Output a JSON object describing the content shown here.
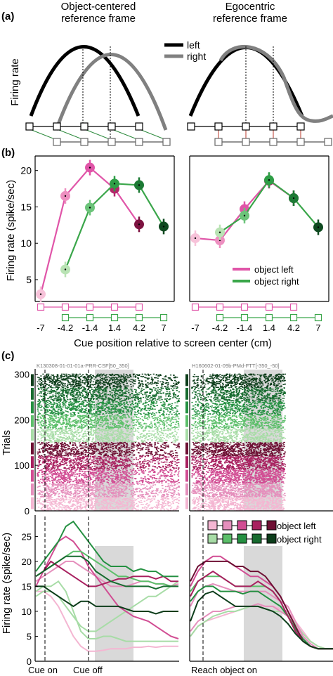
{
  "panel_a": {
    "label": "(a)",
    "title_object": [
      "Object-centered",
      "reference frame"
    ],
    "title_ego": [
      "Egocentric",
      "reference frame"
    ],
    "ylabel": "Firing rate",
    "legend": [
      {
        "label": "left",
        "color": "#000000"
      },
      {
        "label": "right",
        "color": "#808080"
      }
    ]
  },
  "panel_b": {
    "label": "(b)",
    "xlabel": "Cue position relative to screen center (cm)",
    "ylabel": "Firing rate (spike/sec)",
    "legend": [
      {
        "label": "object left",
        "color": "#e055a8"
      },
      {
        "label": "object right",
        "color": "#3aa64a"
      }
    ]
  },
  "panel_c": {
    "label": "(c)",
    "raster_titles": [
      "K130308-01-01-01a-PRR-CSF[50_350]",
      "H160602-01-09b-PMd-FTT[-350_-50]"
    ],
    "raster_ylabel": "Trials",
    "psth_ylabel": "Firing rate (spike/sec)",
    "event_labels_left": [
      "Cue on",
      "Cue off"
    ],
    "event_label_right": "Reach object on",
    "legend": [
      "object left",
      "object right"
    ],
    "colors_left": [
      "#f4b6d2",
      "#e58fbc",
      "#d14d93",
      "#a8205f",
      "#6e1034"
    ],
    "colors_right": [
      "#a7dca6",
      "#5cbf6a",
      "#249041",
      "#176b2f",
      "#0c3d1a"
    ]
  },
  "chart_data": [
    {
      "type": "line",
      "title": "",
      "xlabel": "Cue position relative to screen center (cm)",
      "ylabel": "Firing rate (spike/sec)",
      "categories": [
        "-7",
        "-4.2",
        "-1.4",
        "1.4",
        "4.2",
        "7"
      ],
      "x": [
        -7,
        -4.2,
        -1.4,
        1.4,
        4.2,
        7
      ],
      "ylim": [
        2,
        22
      ],
      "yticks": [
        5,
        10,
        15,
        20
      ],
      "series": [
        {
          "name": "object left",
          "color": "#e055a8",
          "x": [
            -7,
            -4.2,
            -1.4,
            1.4,
            4.2
          ],
          "values": [
            3.0,
            16.5,
            20.4,
            17.5,
            12.6
          ]
        },
        {
          "name": "object right",
          "color": "#3aa64a",
          "x": [
            -4.2,
            -1.4,
            1.4,
            4.2,
            7
          ],
          "values": [
            6.4,
            14.9,
            18.2,
            18.0,
            12.3
          ]
        }
      ]
    },
    {
      "type": "line",
      "title": "",
      "xlabel": "Cue position relative to screen center (cm)",
      "categories": [
        "-7",
        "-4.2",
        "-1.4",
        "1.4",
        "4.2",
        "7"
      ],
      "x": [
        -7,
        -4.2,
        -1.4,
        1.4,
        4.2,
        7
      ],
      "ylim": [
        2,
        22
      ],
      "series": [
        {
          "name": "object left",
          "color": "#e055a8",
          "x": [
            -7,
            -4.2,
            -1.4,
            1.4,
            4.2
          ],
          "values": [
            10.7,
            10.4,
            14.7,
            18.6,
            16.2
          ]
        },
        {
          "name": "object right",
          "color": "#3aa64a",
          "x": [
            -4.2,
            -1.4,
            1.4,
            4.2,
            7
          ],
          "values": [
            11.5,
            13.8,
            18.7,
            16.2,
            12.2
          ]
        }
      ]
    },
    {
      "type": "scatter",
      "ylabel": "Trials",
      "ylim": [
        0,
        310
      ],
      "yticks": [
        0,
        100,
        200,
        300
      ],
      "groups": 10
    },
    {
      "type": "scatter",
      "ylim": [
        0,
        310
      ],
      "groups": 10
    },
    {
      "type": "line",
      "ylabel": "Firing rate (spike/sec)",
      "ylim": [
        0,
        29
      ],
      "yticks": [
        0,
        5,
        10,
        15,
        20,
        25
      ],
      "x": [
        0,
        1,
        2,
        3,
        4,
        5,
        6,
        7,
        8,
        9,
        10,
        11,
        12,
        13,
        14,
        15,
        16,
        17,
        18,
        19
      ],
      "series": [
        {
          "values": [
            14,
            14,
            13,
            11,
            8,
            5,
            3,
            2,
            2,
            2.2,
            2.5,
            2.5,
            2.5,
            2.8,
            2.8,
            3,
            2.8,
            3,
            3,
            3
          ]
        },
        {
          "values": [
            13,
            14,
            14,
            13,
            11,
            9,
            7,
            6,
            6,
            7,
            8,
            9,
            10,
            11,
            12,
            13,
            13,
            14,
            15,
            16
          ]
        },
        {
          "values": [
            16,
            17,
            18,
            19,
            20,
            20,
            19,
            18,
            17,
            16,
            15,
            15,
            15,
            15.5,
            16,
            16,
            15.5,
            15.5,
            15,
            15.5
          ]
        },
        {
          "values": [
            15,
            18,
            21,
            24,
            25,
            24,
            22,
            19,
            17,
            15,
            13,
            11,
            10,
            9,
            8.5,
            8,
            7,
            6,
            5,
            4.5
          ]
        },
        {
          "values": [
            17,
            18,
            19,
            20,
            21,
            22,
            22,
            21,
            20,
            19,
            18,
            17,
            17,
            16.5,
            16,
            16,
            15.5,
            15.5,
            15,
            15
          ]
        },
        {
          "values": [
            14,
            15,
            15,
            16,
            14,
            10,
            6,
            4.5,
            4.5,
            5,
            5,
            4.5,
            4,
            4,
            4,
            4,
            4,
            4,
            4,
            4
          ]
        },
        {
          "values": [
            17,
            18,
            20,
            19,
            18,
            17,
            16,
            15,
            15,
            15.5,
            16,
            16.5,
            16.5,
            17,
            17,
            17,
            16.5,
            17,
            16,
            16
          ]
        },
        {
          "values": [
            18,
            20,
            22,
            24,
            27,
            28,
            26,
            24,
            22,
            20,
            19,
            19,
            19,
            18,
            18.5,
            18,
            18,
            17,
            17,
            17
          ]
        },
        {
          "values": [
            17,
            18,
            19,
            20,
            21,
            21,
            21,
            20,
            18,
            17,
            16,
            15.5,
            15,
            15,
            15,
            15,
            14.5,
            15,
            15,
            15
          ]
        },
        {
          "values": [
            15,
            15,
            14,
            13,
            12,
            11,
            12,
            12,
            11,
            11,
            11,
            11,
            10.5,
            10,
            10,
            10,
            9.5,
            10,
            10,
            10
          ]
        }
      ]
    },
    {
      "type": "line",
      "ylim": [
        0,
        29
      ],
      "x": [
        0,
        1,
        2,
        3,
        4,
        5,
        6,
        7,
        8,
        9,
        10,
        11,
        12,
        13,
        14,
        15,
        16,
        17,
        18,
        19
      ],
      "series": [
        {
          "values": [
            5,
            7,
            8,
            8.5,
            9,
            9.5,
            10,
            10.5,
            11,
            11,
            11,
            11,
            10.5,
            10,
            8,
            6,
            4,
            3,
            2.5,
            2.5
          ]
        },
        {
          "values": [
            5,
            7,
            8,
            9,
            9.5,
            10,
            10,
            10.5,
            11,
            11,
            10.5,
            10,
            10,
            9.5,
            7.5,
            5.5,
            4,
            3,
            2.5,
            2.5
          ]
        },
        {
          "values": [
            11,
            14,
            15,
            15.5,
            15,
            14.5,
            14,
            14,
            14,
            14,
            14,
            13,
            12,
            11,
            8,
            5,
            3.5,
            2.5,
            2.5,
            2.5
          ]
        },
        {
          "values": [
            15,
            18,
            20,
            21,
            21,
            20,
            19,
            18,
            17,
            17,
            16,
            15,
            13,
            10,
            7,
            4,
            3,
            2.5,
            2.5,
            2.5
          ]
        },
        {
          "values": [
            14,
            16,
            17,
            17,
            17,
            16,
            15,
            15,
            15,
            15,
            15,
            14,
            12,
            9,
            6,
            4,
            3,
            2.5,
            2.5,
            2.5
          ]
        },
        {
          "values": [
            6,
            8,
            9,
            10,
            10,
            10.5,
            11,
            11,
            11,
            11.5,
            11,
            11,
            10,
            9,
            7,
            5,
            3.5,
            2.5,
            2.5,
            2.5
          ]
        },
        {
          "values": [
            12,
            14,
            15,
            15,
            14,
            14,
            14,
            13.5,
            14,
            14,
            13,
            12,
            11,
            9,
            6.5,
            4.5,
            3,
            2.5,
            2.5,
            2.5
          ]
        },
        {
          "values": [
            16,
            19,
            20,
            20,
            20,
            20,
            19,
            19,
            18,
            18,
            17,
            15,
            13,
            10,
            7,
            4,
            3,
            2.5,
            2.5,
            2.5
          ]
        },
        {
          "values": [
            13,
            16,
            17,
            18,
            17,
            16,
            15,
            15,
            15,
            16,
            15,
            14,
            12,
            9,
            6,
            4,
            3,
            2.5,
            2.5,
            2.5
          ]
        },
        {
          "values": [
            8,
            12,
            13.5,
            14,
            13,
            12,
            11,
            11,
            11,
            11,
            10.5,
            10,
            9,
            7.5,
            5.5,
            4,
            3,
            2.5,
            2.5,
            2.5
          ]
        }
      ]
    }
  ]
}
